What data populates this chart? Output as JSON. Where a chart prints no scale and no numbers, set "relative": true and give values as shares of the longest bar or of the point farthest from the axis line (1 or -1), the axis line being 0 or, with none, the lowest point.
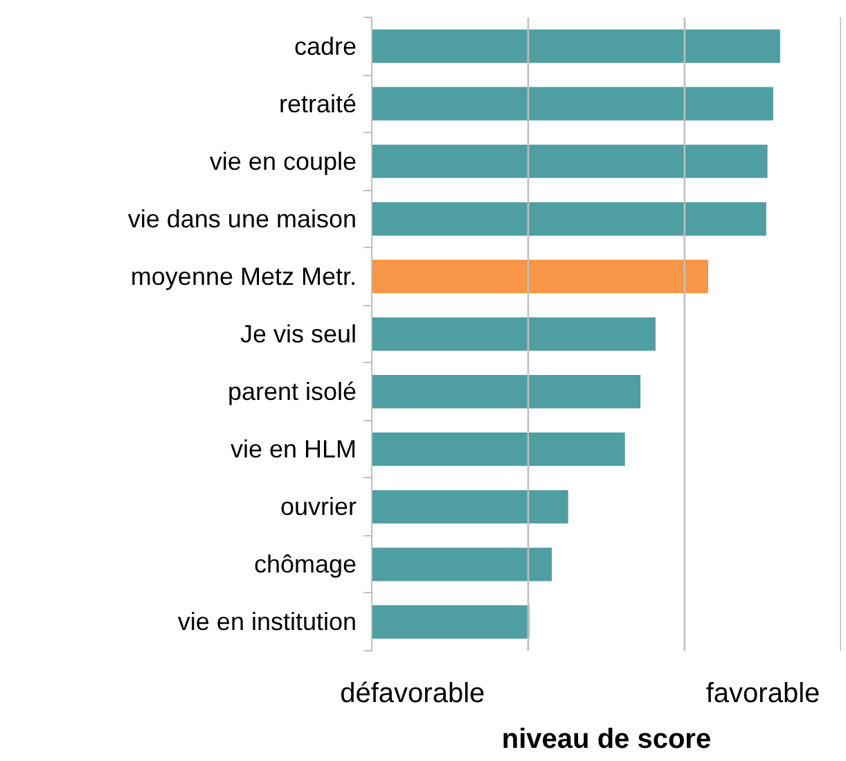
{
  "chart_data": {
    "type": "bar",
    "orientation": "horizontal",
    "relative": true,
    "categories": [
      "cadre",
      "retraité",
      "vie en couple",
      "vie dans une maison",
      "moyenne Metz Metr.",
      "Je vis seul",
      "parent isolé",
      "vie en HLM",
      "ouvrier",
      "chômage",
      "vie en institution"
    ],
    "values": [
      1,
      0.983,
      0.969,
      0.966,
      0.824,
      0.695,
      0.658,
      0.62,
      0.481,
      0.441,
      0.386
    ],
    "colors": [
      "#4f9ea2",
      "#4f9ea2",
      "#4f9ea2",
      "#4f9ea2",
      "#f79646",
      "#4f9ea2",
      "#4f9ea2",
      "#4f9ea2",
      "#4f9ea2",
      "#4f9ea2",
      "#4f9ea2"
    ],
    "xlabel": "niveau de score",
    "annotations": [
      "défavorable",
      "favorable"
    ],
    "ref_lines": [
      {
        "axis": "x",
        "value": 0.383,
        "color": "#bfbfbf"
      },
      {
        "axis": "x",
        "value": 0.766,
        "color": "#bfbfbf"
      },
      {
        "axis": "x",
        "value": 1.149,
        "color": "#bfbfbf"
      }
    ]
  }
}
